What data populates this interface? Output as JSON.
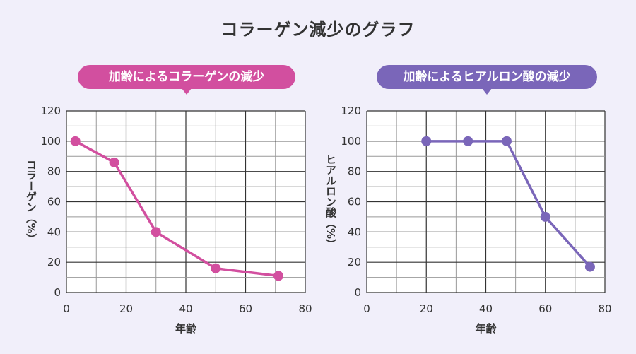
{
  "title": "コラーゲン減少のグラフ",
  "colors": {
    "collagen": "#d24f9f",
    "hyaluronic": "#7a66b9",
    "background": "#f1effa"
  },
  "chart_data": [
    {
      "type": "line",
      "title": "加齢によるコラーゲンの減少",
      "xlabel": "年齢",
      "ylabel": "コラーゲン（%）",
      "xlim": [
        0,
        80
      ],
      "ylim": [
        0,
        120
      ],
      "xticks": [
        0,
        20,
        40,
        60,
        80
      ],
      "yticks": [
        0,
        20,
        40,
        60,
        80,
        100,
        120
      ],
      "grid": true,
      "x": [
        3,
        16,
        30,
        50,
        71
      ],
      "y": [
        100,
        86,
        40,
        16,
        11
      ]
    },
    {
      "type": "line",
      "title": "加齢によるヒアルロン酸の減少",
      "xlabel": "年齢",
      "ylabel": "ヒアルロン酸（%）",
      "xlim": [
        0,
        80
      ],
      "ylim": [
        0,
        120
      ],
      "xticks": [
        0,
        20,
        40,
        60,
        80
      ],
      "yticks": [
        0,
        20,
        40,
        60,
        80,
        100,
        120
      ],
      "grid": true,
      "x": [
        20,
        34,
        47,
        60,
        75
      ],
      "y": [
        100,
        100,
        100,
        50,
        17
      ]
    }
  ]
}
